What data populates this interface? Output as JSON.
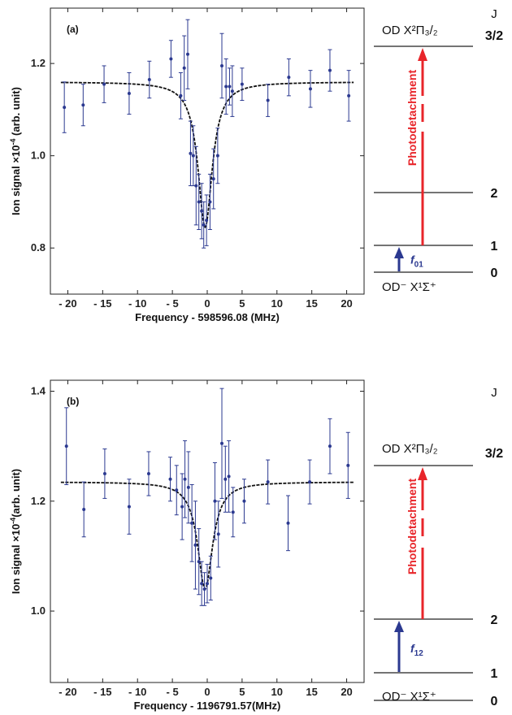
{
  "colors": {
    "data_points": "#2b3990",
    "fit_line": "#111111",
    "photodetachment_arrow": "#e8252a",
    "transition_arrow": "#2b3990"
  },
  "chart_data": [
    {
      "type": "scatter",
      "panel_label": "(a)",
      "xlabel_prefix": "Frequency - ",
      "xlabel_value": "598596.08",
      "xlabel_unit": " (MHz)",
      "ylabel": "Ion signal ×10",
      "ylabel_exp": "-4",
      "ylabel_unit": " (arb. unit)",
      "xlim": [
        -22.5,
        22.5
      ],
      "ylim": [
        0.7,
        1.32
      ],
      "x_ticks": [
        -20,
        -15,
        -10,
        -5,
        0,
        5,
        10,
        15,
        20
      ],
      "x_tick_labels": [
        "- 20",
        "- 15",
        "- 10",
        "- 5",
        "0",
        "5",
        "10",
        "15",
        "20"
      ],
      "y_ticks": [
        0.8,
        1.0,
        1.2
      ],
      "y_tick_labels": [
        "0.8",
        "1.0",
        "1.2"
      ],
      "fit": {
        "baseline": 1.16,
        "depth": 0.315,
        "center": -0.3,
        "hwhm": 1.25
      },
      "points": [
        {
          "x": -20.5,
          "y": 1.105,
          "err": 0.055
        },
        {
          "x": -17.8,
          "y": 1.11,
          "err": 0.045
        },
        {
          "x": -14.8,
          "y": 1.155,
          "err": 0.04
        },
        {
          "x": -11.2,
          "y": 1.135,
          "err": 0.045
        },
        {
          "x": -8.3,
          "y": 1.165,
          "err": 0.04
        },
        {
          "x": -5.2,
          "y": 1.21,
          "err": 0.04
        },
        {
          "x": -3.8,
          "y": 1.13,
          "err": 0.05
        },
        {
          "x": -3.3,
          "y": 1.19,
          "err": 0.07
        },
        {
          "x": -2.8,
          "y": 1.22,
          "err": 0.075
        },
        {
          "x": -2.4,
          "y": 1.005,
          "err": 0.07
        },
        {
          "x": -2.0,
          "y": 1.0,
          "err": 0.065
        },
        {
          "x": -1.6,
          "y": 0.935,
          "err": 0.085
        },
        {
          "x": -1.2,
          "y": 0.9,
          "err": 0.06
        },
        {
          "x": -0.8,
          "y": 0.88,
          "err": 0.06
        },
        {
          "x": -0.5,
          "y": 0.85,
          "err": 0.05
        },
        {
          "x": -0.1,
          "y": 0.86,
          "err": 0.055
        },
        {
          "x": 0.4,
          "y": 0.9,
          "err": 0.06
        },
        {
          "x": 0.9,
          "y": 0.95,
          "err": 0.065
        },
        {
          "x": 1.5,
          "y": 1.0,
          "err": 0.06
        },
        {
          "x": 2.1,
          "y": 1.195,
          "err": 0.07
        },
        {
          "x": 2.7,
          "y": 1.15,
          "err": 0.06
        },
        {
          "x": 3.2,
          "y": 1.15,
          "err": 0.04
        },
        {
          "x": 3.6,
          "y": 1.14,
          "err": 0.055
        },
        {
          "x": 5.0,
          "y": 1.155,
          "err": 0.035
        },
        {
          "x": 8.7,
          "y": 1.12,
          "err": 0.035
        },
        {
          "x": 11.7,
          "y": 1.17,
          "err": 0.04
        },
        {
          "x": 14.8,
          "y": 1.145,
          "err": 0.04
        },
        {
          "x": 17.6,
          "y": 1.185,
          "err": 0.045
        },
        {
          "x": 20.3,
          "y": 1.13,
          "err": 0.055
        }
      ],
      "levels": {
        "upper_label": "OD X²Π₃/₂",
        "lower_label": "OD⁻ X¹Σ⁺",
        "arrow_label": "Photodetachment",
        "f_main": "f",
        "f_sub": "01",
        "j_header": "J",
        "j_values": [
          "3/2",
          "2",
          "1",
          "0"
        ]
      }
    },
    {
      "type": "scatter",
      "panel_label": "(b)",
      "xlabel_prefix": "Frequency - ",
      "xlabel_value": "1196791.57",
      "xlabel_unit": "(MHz)",
      "ylabel": "Ion signal ×10",
      "ylabel_exp": "-4",
      "ylabel_unit": "(arb. unit)",
      "xlim": [
        -22.5,
        22.5
      ],
      "ylim": [
        0.87,
        1.42
      ],
      "x_ticks": [
        -20,
        -15,
        -10,
        -5,
        0,
        5,
        10,
        15,
        20
      ],
      "x_tick_labels": [
        "- 20",
        "- 15",
        "- 10",
        "- 5",
        "0",
        "5",
        "10",
        "15",
        "20"
      ],
      "y_ticks": [
        1.0,
        1.2,
        1.4
      ],
      "y_tick_labels": [
        "1.0",
        "1.2",
        "1.4"
      ],
      "fit": {
        "baseline": 1.235,
        "depth": 0.195,
        "center": -0.3,
        "hwhm": 1.3
      },
      "points": [
        {
          "x": -20.2,
          "y": 1.3,
          "err": 0.07
        },
        {
          "x": -17.7,
          "y": 1.185,
          "err": 0.05
        },
        {
          "x": -14.7,
          "y": 1.25,
          "err": 0.045
        },
        {
          "x": -11.2,
          "y": 1.19,
          "err": 0.05
        },
        {
          "x": -8.4,
          "y": 1.25,
          "err": 0.04
        },
        {
          "x": -5.3,
          "y": 1.24,
          "err": 0.04
        },
        {
          "x": -4.4,
          "y": 1.22,
          "err": 0.045
        },
        {
          "x": -3.6,
          "y": 1.19,
          "err": 0.06
        },
        {
          "x": -3.2,
          "y": 1.24,
          "err": 0.07
        },
        {
          "x": -2.7,
          "y": 1.225,
          "err": 0.065
        },
        {
          "x": -2.2,
          "y": 1.16,
          "err": 0.07
        },
        {
          "x": -1.7,
          "y": 1.12,
          "err": 0.08
        },
        {
          "x": -1.2,
          "y": 1.09,
          "err": 0.06
        },
        {
          "x": -0.8,
          "y": 1.05,
          "err": 0.04
        },
        {
          "x": -0.4,
          "y": 1.04,
          "err": 0.03
        },
        {
          "x": 0.0,
          "y": 1.05,
          "err": 0.035
        },
        {
          "x": 0.5,
          "y": 1.06,
          "err": 0.04
        },
        {
          "x": 1.1,
          "y": 1.2,
          "err": 0.07
        },
        {
          "x": 1.6,
          "y": 1.14,
          "err": 0.06
        },
        {
          "x": 2.1,
          "y": 1.305,
          "err": 0.1
        },
        {
          "x": 2.6,
          "y": 1.24,
          "err": 0.06
        },
        {
          "x": 3.1,
          "y": 1.245,
          "err": 0.065
        },
        {
          "x": 3.7,
          "y": 1.18,
          "err": 0.045
        },
        {
          "x": 5.3,
          "y": 1.2,
          "err": 0.04
        },
        {
          "x": 8.7,
          "y": 1.235,
          "err": 0.04
        },
        {
          "x": 11.6,
          "y": 1.16,
          "err": 0.05
        },
        {
          "x": 14.7,
          "y": 1.235,
          "err": 0.04
        },
        {
          "x": 17.6,
          "y": 1.3,
          "err": 0.05
        },
        {
          "x": 20.2,
          "y": 1.265,
          "err": 0.06
        }
      ],
      "levels": {
        "upper_label": "OD X²Π₃/₂",
        "lower_label": "OD⁻ X¹Σ⁺",
        "arrow_label": "Photodetachment",
        "f_main": "f",
        "f_sub": "12",
        "j_header": "J",
        "j_values": [
          "3/2",
          "2",
          "1",
          "0"
        ]
      }
    }
  ]
}
